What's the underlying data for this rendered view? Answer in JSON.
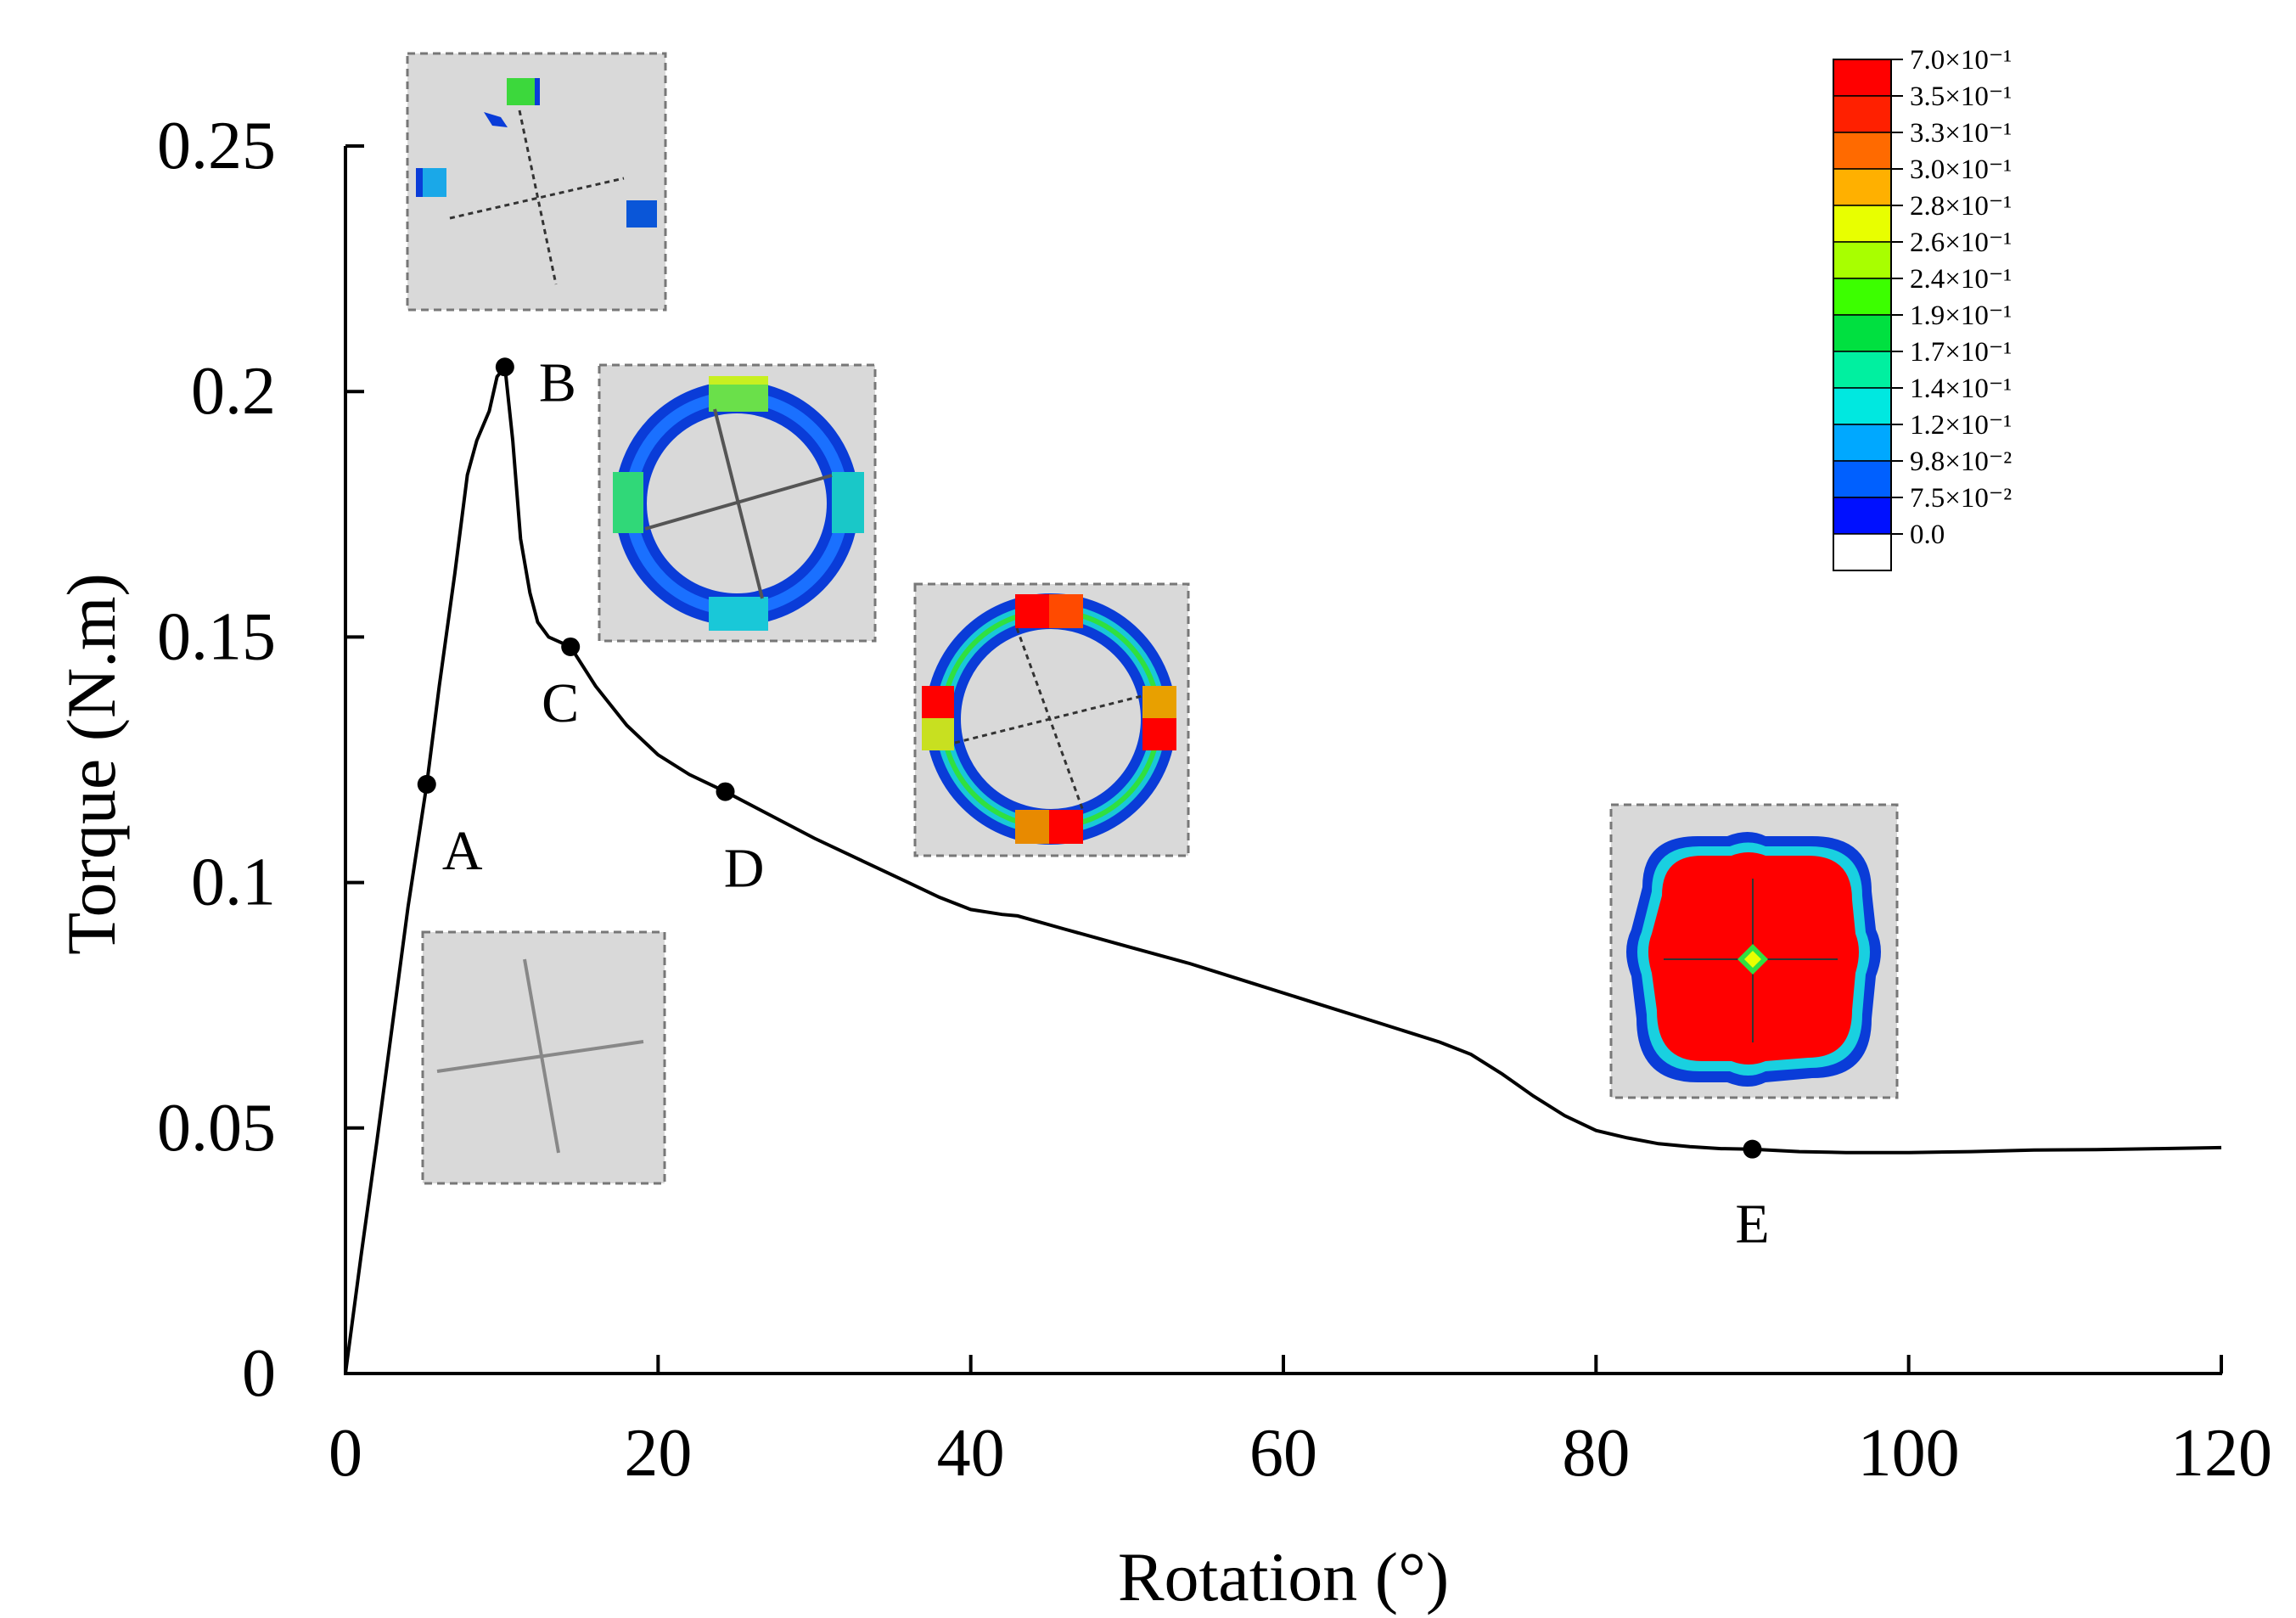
{
  "chart_data": {
    "type": "line",
    "xlabel": "Rotation (°)",
    "ylabel": "Torque (N.m)",
    "xlim": [
      0,
      120
    ],
    "ylim": [
      0,
      0.25
    ],
    "xticks": [
      "0",
      "20",
      "40",
      "60",
      "80",
      "100",
      "120"
    ],
    "yticks": [
      "0",
      "0.05",
      "0.1",
      "0.15",
      "0.2",
      "0.25"
    ],
    "series": [
      {
        "name": "Torque",
        "x": [
          0,
          1,
          2,
          3,
          4,
          5.2,
          6,
          7,
          7.8,
          8.4,
          9.2,
          9.7,
          10.2,
          10.7,
          11.2,
          11.8,
          12.3,
          13,
          13.7,
          14.4,
          16,
          18,
          20,
          22,
          24.3,
          27,
          30,
          33,
          36,
          38,
          40,
          42,
          43,
          46,
          50,
          54,
          58,
          62,
          66,
          70,
          72,
          74,
          76,
          78,
          80,
          82,
          84,
          86,
          88,
          90,
          93,
          96,
          100,
          104,
          108,
          112,
          116,
          120
        ],
        "y": [
          0,
          0.024,
          0.047,
          0.071,
          0.095,
          0.12,
          0.14,
          0.163,
          0.183,
          0.19,
          0.196,
          0.203,
          0.205,
          0.19,
          0.17,
          0.159,
          0.153,
          0.15,
          0.149,
          0.148,
          0.14,
          0.132,
          0.126,
          0.122,
          0.1185,
          0.114,
          0.109,
          0.1045,
          0.1,
          0.097,
          0.0945,
          0.0935,
          0.0932,
          0.0905,
          0.087,
          0.0835,
          0.0795,
          0.0755,
          0.0715,
          0.0675,
          0.065,
          0.061,
          0.0565,
          0.0525,
          0.0495,
          0.048,
          0.0468,
          0.0462,
          0.0458,
          0.0457,
          0.0452,
          0.045,
          0.045,
          0.0452,
          0.0455,
          0.0456,
          0.0458,
          0.046
        ]
      }
    ],
    "points": [
      {
        "name": "A",
        "x": 5.2,
        "y": 0.12
      },
      {
        "name": "B",
        "x": 10.2,
        "y": 0.205
      },
      {
        "name": "C",
        "x": 14.4,
        "y": 0.148
      },
      {
        "name": "D",
        "x": 24.3,
        "y": 0.1185
      },
      {
        "name": "E",
        "x": 90,
        "y": 0.0457
      }
    ],
    "legend": {
      "position": "top-right",
      "entries": [
        {
          "label": "7.0×10⁻¹",
          "color": "#ff0000"
        },
        {
          "label": "3.5×10⁻¹",
          "color": "#ff2000"
        },
        {
          "label": "3.3×10⁻¹",
          "color": "#ff6a00"
        },
        {
          "label": "3.0×10⁻¹",
          "color": "#ffb000"
        },
        {
          "label": "2.8×10⁻¹",
          "color": "#e8ff00"
        },
        {
          "label": "2.6×10⁻¹",
          "color": "#a8ff00"
        },
        {
          "label": "2.4×10⁻¹",
          "color": "#3cff00"
        },
        {
          "label": "1.9×10⁻¹",
          "color": "#00e040"
        },
        {
          "label": "1.7×10⁻¹",
          "color": "#00f0a0"
        },
        {
          "label": "1.4×10⁻¹",
          "color": "#00e8e0"
        },
        {
          "label": "1.2×10⁻¹",
          "color": "#00a8ff"
        },
        {
          "label": "9.8×10⁻²",
          "color": "#0060ff"
        },
        {
          "label": "7.5×10⁻²",
          "color": "#0010ff"
        },
        {
          "label": "0.0",
          "color": "#ffffff"
        }
      ]
    },
    "insets": [
      {
        "name": "state-A",
        "point": "A"
      },
      {
        "name": "state-B",
        "point": "B"
      },
      {
        "name": "state-C",
        "point": "C"
      },
      {
        "name": "state-D",
        "point": "D"
      },
      {
        "name": "state-E",
        "point": "E"
      }
    ]
  },
  "colors": {
    "line": "#000000",
    "inset_bg": "#d9d9d9",
    "inset_border": "#777777",
    "red": "#ff0000",
    "blue": "#0a3cd8",
    "mid_blue": "#1a70ff",
    "cyan": "#19c8d8",
    "green": "#30e040",
    "yellow_green": "#b8f020"
  }
}
